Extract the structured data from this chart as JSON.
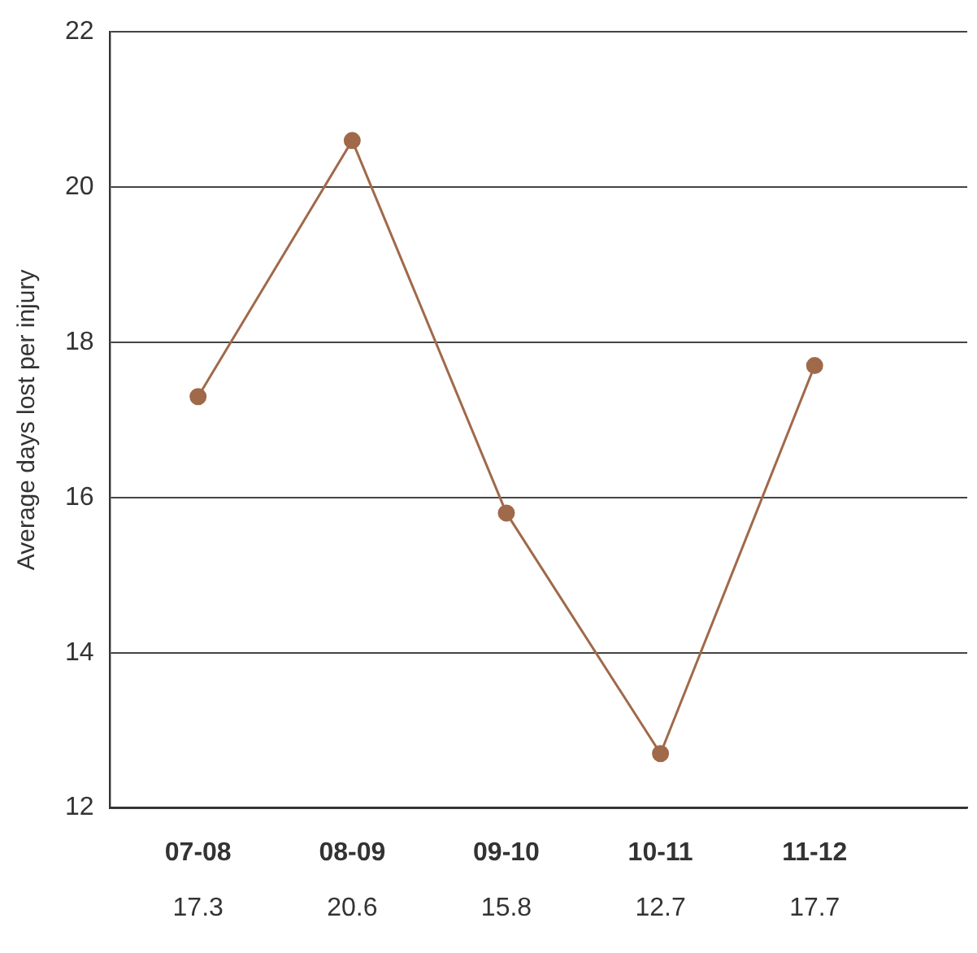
{
  "chart_data": {
    "type": "line",
    "ylabel": "Average days lost per injury",
    "categories": [
      "07-08",
      "08-09",
      "09-10",
      "10-11",
      "11-12"
    ],
    "series": [
      {
        "color": "#a0694a",
        "values": [
          17.3,
          20.6,
          15.8,
          12.7,
          17.7
        ]
      }
    ],
    "ylim": [
      12,
      22
    ],
    "yticks": [
      12,
      14,
      16,
      18,
      20,
      22
    ],
    "grid": "y",
    "marker": "circle",
    "line_style": "solid",
    "data_labels": true,
    "legend": false
  }
}
